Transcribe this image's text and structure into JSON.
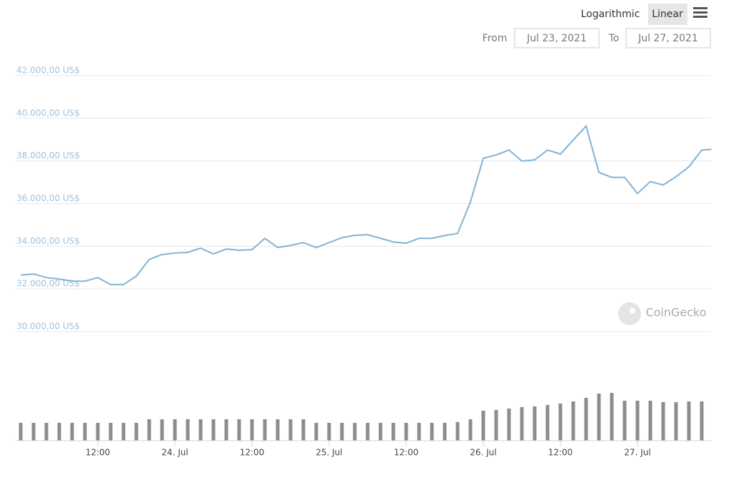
{
  "controls": {
    "scale_options": [
      "Logarithmic",
      "Linear"
    ],
    "from_label": "From",
    "from_date": "Jul 23, 2021",
    "to_label": "To",
    "to_date": "Jul 27, 2021"
  },
  "watermark": "CoinGecko",
  "chart_data": [
    {
      "type": "line",
      "color": "#7fb3d5",
      "log_scale": false,
      "grid": true,
      "x": [
        0,
        2,
        4,
        6,
        8,
        10,
        12,
        14,
        16,
        18,
        20,
        22,
        24,
        26,
        28,
        30,
        32,
        34,
        36,
        38,
        40,
        42,
        44,
        46,
        48,
        50,
        52,
        54,
        56,
        58,
        60,
        62,
        64,
        66,
        68,
        70,
        72,
        74,
        76,
        78,
        80,
        82,
        84,
        86,
        88,
        90,
        92,
        94,
        96,
        98,
        100,
        102,
        104,
        106,
        107.5
      ],
      "values": [
        32650,
        32700,
        32530,
        32460,
        32360,
        32360,
        32530,
        32200,
        32200,
        32600,
        33380,
        33610,
        33680,
        33710,
        33910,
        33640,
        33870,
        33810,
        33840,
        34370,
        33940,
        34040,
        34170,
        33940,
        34170,
        34400,
        34510,
        34540,
        34370,
        34200,
        34140,
        34370,
        34370,
        34500,
        34600,
        36080,
        38120,
        38280,
        38510,
        37990,
        38050,
        38510,
        38320,
        38980,
        39630,
        37460,
        37230,
        37230,
        36470,
        37030,
        36870,
        37260,
        37720,
        38510,
        38540
      ],
      "xlim": [
        0,
        107.5
      ],
      "ylim": [
        30000,
        42000
      ],
      "yticks": [
        {
          "value": 30000,
          "label": "30.000,00 US$"
        },
        {
          "value": 32000,
          "label": "32.000,00 US$"
        },
        {
          "value": 34000,
          "label": "34.000,00 US$"
        },
        {
          "value": 36000,
          "label": "36.000,00 US$"
        },
        {
          "value": 38000,
          "label": "38.000,00 US$"
        },
        {
          "value": 40000,
          "label": "40.000,00 US$"
        },
        {
          "value": 42000,
          "label": "42.000,00 US$"
        }
      ]
    },
    {
      "type": "bar",
      "color": "#8c8c8c",
      "x": [
        0,
        2,
        4,
        6,
        8,
        10,
        12,
        14,
        16,
        18,
        20,
        22,
        24,
        26,
        28,
        30,
        32,
        34,
        36,
        38,
        40,
        42,
        44,
        46,
        48,
        50,
        52,
        54,
        56,
        58,
        60,
        62,
        64,
        66,
        68,
        70,
        72,
        74,
        76,
        78,
        80,
        82,
        84,
        86,
        88,
        90,
        92,
        94,
        96,
        98,
        100,
        102,
        104,
        106
      ],
      "values": [
        25,
        25,
        25,
        25,
        25,
        25,
        25,
        25,
        25,
        25,
        30,
        30,
        30,
        30,
        30,
        30,
        30,
        30,
        30,
        30,
        30,
        30,
        30,
        25,
        25,
        25,
        25,
        25,
        25,
        25,
        25,
        25,
        25,
        25,
        26,
        30,
        42,
        43,
        45,
        47,
        48,
        50,
        52,
        55,
        60,
        66,
        67,
        56,
        56,
        56,
        54,
        54,
        55,
        55
      ],
      "xlim": [
        0,
        107.5
      ],
      "ylim": [
        0,
        80
      ],
      "xticks": [
        {
          "value": 12,
          "label": "12:00"
        },
        {
          "value": 24,
          "label": "24. Jul"
        },
        {
          "value": 36,
          "label": "12:00"
        },
        {
          "value": 48,
          "label": "25. Jul"
        },
        {
          "value": 60,
          "label": "12:00"
        },
        {
          "value": 72,
          "label": "26. Jul"
        },
        {
          "value": 84,
          "label": "12:00"
        },
        {
          "value": 96,
          "label": "27. Jul"
        }
      ]
    }
  ]
}
